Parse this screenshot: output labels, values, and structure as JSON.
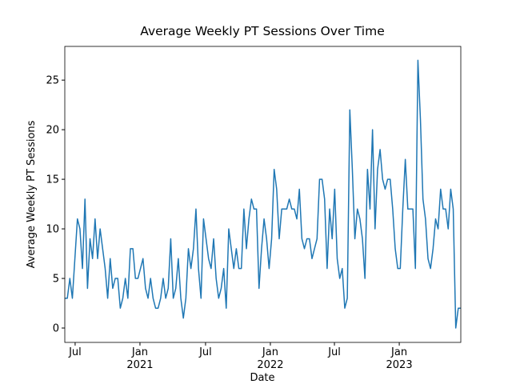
{
  "chart_data": {
    "type": "line",
    "title": "Average Weekly PT Sessions Over Time",
    "x_label": "Date",
    "y_label": "Average Weekly PT Sessions",
    "color": "#1f77b4",
    "values": [
      3,
      3,
      5,
      3,
      7,
      11,
      10,
      6,
      13,
      4,
      9,
      7,
      11,
      7,
      10,
      8,
      6,
      3,
      7,
      4,
      5,
      5,
      2,
      3,
      5,
      3,
      8,
      8,
      5,
      5,
      6,
      7,
      4,
      3,
      5,
      3,
      2,
      2,
      3,
      5,
      3,
      4,
      9,
      3,
      4,
      7,
      3,
      1,
      3,
      8,
      6,
      8,
      12,
      6,
      3,
      11,
      9,
      7,
      6,
      9,
      5,
      3,
      4,
      6,
      2,
      10,
      8,
      6,
      8,
      6,
      6,
      12,
      8,
      11,
      13,
      12,
      12,
      4,
      8,
      11,
      9,
      6,
      9,
      16,
      14,
      9,
      12,
      12,
      12,
      13,
      12,
      12,
      11,
      14,
      9,
      8,
      9,
      9,
      7,
      8,
      9,
      15,
      15,
      13,
      6,
      12,
      9,
      14,
      7,
      5,
      6,
      2,
      3,
      22,
      16,
      9,
      12,
      11,
      9,
      5,
      16,
      12,
      20,
      10,
      16,
      18,
      15,
      14,
      15,
      15,
      12,
      8,
      6,
      6,
      12,
      17,
      12,
      12,
      12,
      6,
      27,
      21,
      13,
      11,
      7,
      6,
      8,
      11,
      10,
      14,
      12,
      12,
      10,
      14,
      12,
      0,
      2,
      2
    ],
    "xlim": [
      0,
      157
    ],
    "xticks": [
      {
        "value": 4.1,
        "label": "Jul"
      },
      {
        "value": 29.8,
        "label": "Jan\n2021"
      },
      {
        "value": 55.8,
        "label": "Jul"
      },
      {
        "value": 81.5,
        "label": "Jan\n2022"
      },
      {
        "value": 106.9,
        "label": "Jul"
      },
      {
        "value": 132.6,
        "label": "Jan\n2023"
      }
    ],
    "ylim": [
      -1.45,
      28.4
    ],
    "yticks": [
      0,
      5,
      10,
      15,
      20,
      25
    ]
  }
}
